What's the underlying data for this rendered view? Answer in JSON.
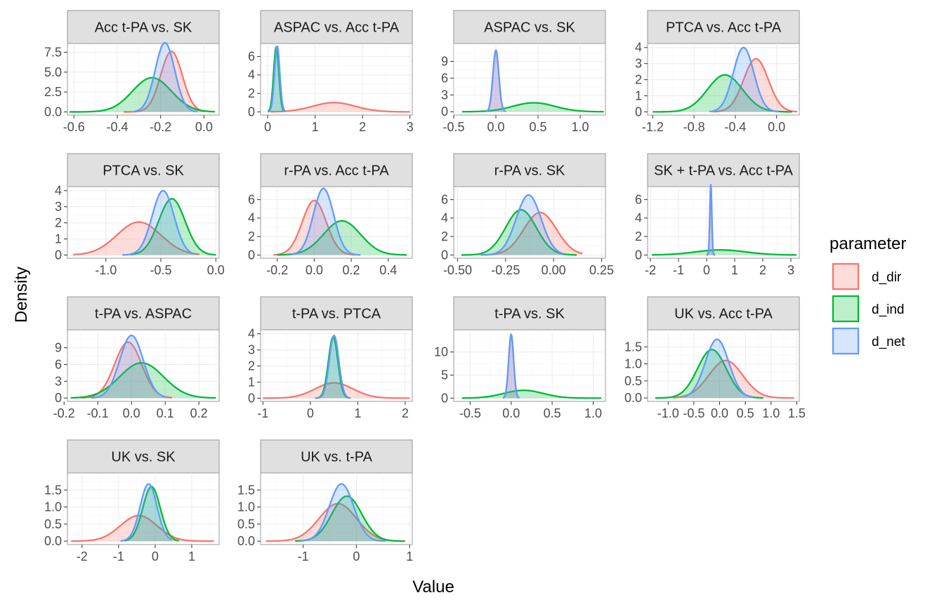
{
  "chart_data": {
    "type": "area",
    "xlabel": "Value",
    "ylabel": "Density",
    "legend": {
      "title": "parameter",
      "position": "right",
      "entries": [
        {
          "name": "d_dir",
          "color": "#F8766D"
        },
        {
          "name": "d_ind",
          "color": "#00BA38"
        },
        {
          "name": "d_net",
          "color": "#619CFF"
        }
      ]
    },
    "grid": true,
    "panels": [
      {
        "title": "Acc t-PA vs. SK",
        "xlim": [
          -0.63,
          0.07
        ],
        "ylim": [
          -0.4,
          8.6
        ],
        "xticks": [
          "-0.6",
          "-0.4",
          "-0.2",
          "0.0"
        ],
        "yticks": [
          "0.0",
          "2.5",
          "5.0",
          "7.5"
        ],
        "series": [
          {
            "name": "d_dir",
            "mean": -0.15,
            "sd": 0.05,
            "peak": 7.6,
            "range": [
              -0.37,
              0.0
            ]
          },
          {
            "name": "d_ind",
            "mean": -0.24,
            "sd": 0.09,
            "peak": 4.3,
            "range": [
              -0.62,
              0.05
            ]
          },
          {
            "name": "d_net",
            "mean": -0.18,
            "sd": 0.045,
            "peak": 8.7,
            "range": [
              -0.32,
              -0.03
            ]
          }
        ]
      },
      {
        "title": "ASPAC vs. Acc t-PA",
        "xlim": [
          -0.15,
          3.05
        ],
        "ylim": [
          -0.35,
          7.4
        ],
        "xticks": [
          "0",
          "1",
          "2",
          "3"
        ],
        "yticks": [
          "0",
          "2",
          "4",
          "6"
        ],
        "series": [
          {
            "name": "d_dir",
            "mean": 1.4,
            "sd": 0.45,
            "peak": 1.0,
            "range": [
              0.05,
              3.0
            ]
          },
          {
            "name": "d_ind",
            "mean": 0.18,
            "sd": 0.055,
            "peak": 7.0,
            "range": [
              0.0,
              0.35
            ]
          },
          {
            "name": "d_net",
            "mean": 0.2,
            "sd": 0.055,
            "peak": 7.1,
            "range": [
              0.02,
              0.38
            ]
          }
        ]
      },
      {
        "title": "ASPAC vs. SK",
        "xlim": [
          -0.5,
          1.3
        ],
        "ylim": [
          -0.6,
          12.2
        ],
        "xticks": [
          "-0.5",
          "0.0",
          "0.5",
          "1.0"
        ],
        "yticks": [
          "0",
          "3",
          "6",
          "9"
        ],
        "series": [
          {
            "name": "d_dir",
            "mean": 0.0,
            "sd": 0.035,
            "peak": 11.0,
            "range": [
              -0.1,
              0.1
            ]
          },
          {
            "name": "d_ind",
            "mean": 0.45,
            "sd": 0.25,
            "peak": 1.6,
            "range": [
              -0.4,
              1.28
            ]
          },
          {
            "name": "d_net",
            "mean": 0.0,
            "sd": 0.035,
            "peak": 10.9,
            "range": [
              -0.12,
              0.12
            ]
          }
        ]
      },
      {
        "title": "PTCA vs. Acc t-PA",
        "xlim": [
          -1.25,
          0.22
        ],
        "ylim": [
          -0.2,
          4.25
        ],
        "xticks": [
          "-1.2",
          "-0.8",
          "-0.4",
          "0.0"
        ],
        "yticks": [
          "0",
          "1",
          "2",
          "3",
          "4"
        ],
        "series": [
          {
            "name": "d_dir",
            "mean": -0.2,
            "sd": 0.12,
            "peak": 3.3,
            "range": [
              -0.62,
              0.2
            ]
          },
          {
            "name": "d_ind",
            "mean": -0.5,
            "sd": 0.17,
            "peak": 2.3,
            "range": [
              -1.2,
              0.15
            ]
          },
          {
            "name": "d_net",
            "mean": -0.32,
            "sd": 0.1,
            "peak": 4.0,
            "range": [
              -0.65,
              0.02
            ]
          }
        ]
      },
      {
        "title": "PTCA vs. SK",
        "xlim": [
          -1.35,
          0.03
        ],
        "ylim": [
          -0.2,
          4.25
        ],
        "xticks": [
          "-1.0",
          "-0.5",
          "0.0"
        ],
        "yticks": [
          "0",
          "1",
          "2",
          "3",
          "4"
        ],
        "series": [
          {
            "name": "d_dir",
            "mean": -0.7,
            "sd": 0.2,
            "peak": 2.05,
            "range": [
              -1.3,
              -0.15
            ]
          },
          {
            "name": "d_ind",
            "mean": -0.4,
            "sd": 0.12,
            "peak": 3.5,
            "range": [
              -0.78,
              0.0
            ]
          },
          {
            "name": "d_net",
            "mean": -0.48,
            "sd": 0.1,
            "peak": 4.0,
            "range": [
              -0.85,
              -0.2
            ]
          }
        ]
      },
      {
        "title": "r-PA vs. Acc t-PA",
        "xlim": [
          -0.29,
          0.53
        ],
        "ylim": [
          -0.35,
          7.4
        ],
        "xticks": [
          "-0.2",
          "0.0",
          "0.2",
          "0.4"
        ],
        "yticks": [
          "0",
          "2",
          "4",
          "6"
        ],
        "series": [
          {
            "name": "d_dir",
            "mean": 0.0,
            "sd": 0.065,
            "peak": 5.9,
            "range": [
              -0.22,
              0.22
            ]
          },
          {
            "name": "d_ind",
            "mean": 0.15,
            "sd": 0.1,
            "peak": 3.7,
            "range": [
              -0.2,
              0.5
            ]
          },
          {
            "name": "d_net",
            "mean": 0.05,
            "sd": 0.055,
            "peak": 7.2,
            "range": [
              -0.13,
              0.25
            ]
          }
        ]
      },
      {
        "title": "r-PA vs. SK",
        "xlim": [
          -0.52,
          0.27
        ],
        "ylim": [
          -0.35,
          7.4
        ],
        "xticks": [
          "-0.50",
          "-0.25",
          "0.00",
          "0.25"
        ],
        "yticks": [
          "0",
          "2",
          "4",
          "6"
        ],
        "series": [
          {
            "name": "d_dir",
            "mean": -0.07,
            "sd": 0.085,
            "peak": 4.6,
            "range": [
              -0.38,
              0.15
            ]
          },
          {
            "name": "d_ind",
            "mean": -0.17,
            "sd": 0.08,
            "peak": 4.9,
            "range": [
              -0.48,
              0.12
            ]
          },
          {
            "name": "d_net",
            "mean": -0.13,
            "sd": 0.065,
            "peak": 6.5,
            "range": [
              -0.38,
              0.05
            ]
          }
        ]
      },
      {
        "title": "SK + t-PA vs. Acc t-PA",
        "xlim": [
          -2.1,
          3.3
        ],
        "ylim": [
          -0.35,
          7.4
        ],
        "xticks": [
          "-2",
          "-1",
          "0",
          "1",
          "2",
          "3"
        ],
        "yticks": [
          "0",
          "2",
          "4",
          "6"
        ],
        "series": [
          {
            "name": "d_dir",
            "mean": 0.15,
            "sd": 0.035,
            "peak": 7.5,
            "range": [
              0.0,
              0.3
            ]
          },
          {
            "name": "d_ind",
            "mean": 0.5,
            "sd": 0.9,
            "peak": 0.55,
            "range": [
              -1.95,
              3.2
            ]
          },
          {
            "name": "d_net",
            "mean": 0.15,
            "sd": 0.035,
            "peak": 7.6,
            "range": [
              0.0,
              0.3
            ]
          }
        ]
      },
      {
        "title": "t-PA vs. ASPAC",
        "xlim": [
          -0.19,
          0.26
        ],
        "ylim": [
          -0.6,
          12.2
        ],
        "xticks": [
          "-0.2",
          "-0.1",
          "0.0",
          "0.1",
          "0.2"
        ],
        "yticks": [
          "0",
          "3",
          "6",
          "9"
        ],
        "series": [
          {
            "name": "d_dir",
            "mean": -0.01,
            "sd": 0.04,
            "peak": 10.0,
            "range": [
              -0.15,
              0.12
            ]
          },
          {
            "name": "d_ind",
            "mean": 0.03,
            "sd": 0.065,
            "peak": 6.3,
            "range": [
              -0.18,
              0.25
            ]
          },
          {
            "name": "d_net",
            "mean": 0.0,
            "sd": 0.035,
            "peak": 11.2,
            "range": [
              -0.12,
              0.1
            ]
          }
        ]
      },
      {
        "title": "t-PA vs. PTCA",
        "xlim": [
          -1.05,
          2.15
        ],
        "ylim": [
          -0.2,
          4.25
        ],
        "xticks": [
          "-1",
          "0",
          "1",
          "2"
        ],
        "yticks": [
          "0",
          "1",
          "2",
          "3",
          "4"
        ],
        "series": [
          {
            "name": "d_dir",
            "mean": 0.5,
            "sd": 0.4,
            "peak": 0.95,
            "range": [
              -1.0,
              2.1
            ]
          },
          {
            "name": "d_ind",
            "mean": 0.48,
            "sd": 0.1,
            "peak": 3.8,
            "range": [
              0.1,
              0.85
            ]
          },
          {
            "name": "d_net",
            "mean": 0.5,
            "sd": 0.1,
            "peak": 3.9,
            "range": [
              0.1,
              0.85
            ]
          }
        ]
      },
      {
        "title": "t-PA vs. SK",
        "xlim": [
          -0.7,
          1.15
        ],
        "ylim": [
          -0.7,
          14.8
        ],
        "xticks": [
          "-0.5",
          "0.0",
          "0.5",
          "1.0"
        ],
        "yticks": [
          "0",
          "5",
          "10"
        ],
        "series": [
          {
            "name": "d_dir",
            "mean": 0.0,
            "sd": 0.03,
            "peak": 13.7,
            "range": [
              -0.1,
              0.1
            ]
          },
          {
            "name": "d_ind",
            "mean": 0.15,
            "sd": 0.24,
            "peak": 1.7,
            "range": [
              -0.6,
              1.1
            ]
          },
          {
            "name": "d_net",
            "mean": 0.0,
            "sd": 0.03,
            "peak": 13.8,
            "range": [
              -0.1,
              0.1
            ]
          }
        ]
      },
      {
        "title": "UK vs. Acc t-PA",
        "xlim": [
          -1.4,
          1.55
        ],
        "ylim": [
          -0.1,
          2.0
        ],
        "xticks": [
          "-1.0",
          "-0.5",
          "0.0",
          "0.5",
          "1.0",
          "1.5"
        ],
        "yticks": [
          "0.0",
          "0.5",
          "1.0",
          "1.5"
        ],
        "series": [
          {
            "name": "d_dir",
            "mean": 0.12,
            "sd": 0.33,
            "peak": 1.1,
            "range": [
              -0.9,
              1.45
            ]
          },
          {
            "name": "d_ind",
            "mean": -0.15,
            "sd": 0.28,
            "peak": 1.42,
            "range": [
              -1.25,
              0.85
            ]
          },
          {
            "name": "d_net",
            "mean": -0.05,
            "sd": 0.23,
            "peak": 1.72,
            "range": [
              -0.7,
              0.65
            ]
          }
        ]
      },
      {
        "title": "UK vs. SK",
        "xlim": [
          -2.4,
          1.75
        ],
        "ylim": [
          -0.1,
          2.0
        ],
        "xticks": [
          "-2",
          "-1",
          "0",
          "1"
        ],
        "yticks": [
          "0.0",
          "0.5",
          "1.0",
          "1.5"
        ],
        "series": [
          {
            "name": "d_dir",
            "mean": -0.45,
            "sd": 0.5,
            "peak": 0.75,
            "range": [
              -2.3,
              1.6
            ]
          },
          {
            "name": "d_ind",
            "mean": -0.1,
            "sd": 0.24,
            "peak": 1.6,
            "range": [
              -0.85,
              0.65
            ]
          },
          {
            "name": "d_net",
            "mean": -0.18,
            "sd": 0.23,
            "peak": 1.68,
            "range": [
              -0.95,
              0.45
            ]
          }
        ]
      },
      {
        "title": "UK vs. t-PA",
        "xlim": [
          -1.8,
          1.05
        ],
        "ylim": [
          -0.1,
          2.0
        ],
        "xticks": [
          "-1",
          "0",
          "1"
        ],
        "yticks": [
          "0.0",
          "0.5",
          "1.0",
          "1.5"
        ],
        "series": [
          {
            "name": "d_dir",
            "mean": -0.35,
            "sd": 0.35,
            "peak": 1.1,
            "range": [
              -1.7,
              0.92
            ]
          },
          {
            "name": "d_ind",
            "mean": -0.18,
            "sd": 0.28,
            "peak": 1.32,
            "range": [
              -1.15,
              0.9
            ]
          },
          {
            "name": "d_net",
            "mean": -0.28,
            "sd": 0.23,
            "peak": 1.68,
            "range": [
              -1.05,
              0.55
            ]
          }
        ]
      }
    ]
  }
}
